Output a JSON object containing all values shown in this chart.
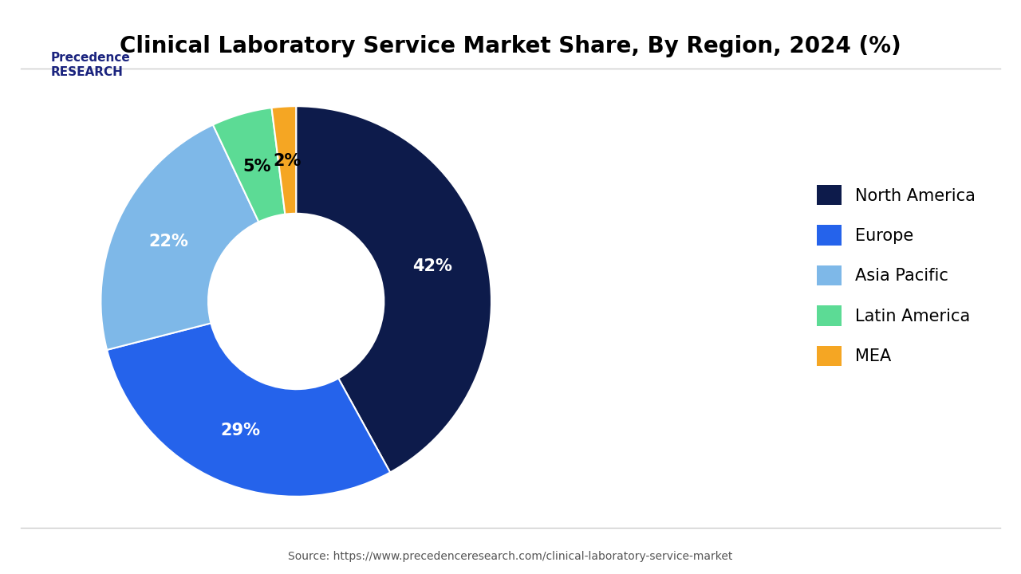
{
  "title": "Clinical Laboratory Service Market Share, By Region, 2024 (%)",
  "labels": [
    "North America",
    "Europe",
    "Asia Pacific",
    "Latin America",
    "MEA"
  ],
  "values": [
    42,
    29,
    22,
    5,
    2
  ],
  "colors": [
    "#0d1b4b",
    "#2563eb",
    "#7eb8e8",
    "#5cdb95",
    "#f5a623"
  ],
  "pct_labels": [
    "42%",
    "29%",
    "22%",
    "5%",
    "2%"
  ],
  "pct_colors": [
    "white",
    "white",
    "white",
    "black",
    "black"
  ],
  "source_text": "Source: https://www.precedenceresearch.com/clinical-laboratory-service-market",
  "background_color": "#ffffff",
  "title_fontsize": 20,
  "legend_fontsize": 15
}
